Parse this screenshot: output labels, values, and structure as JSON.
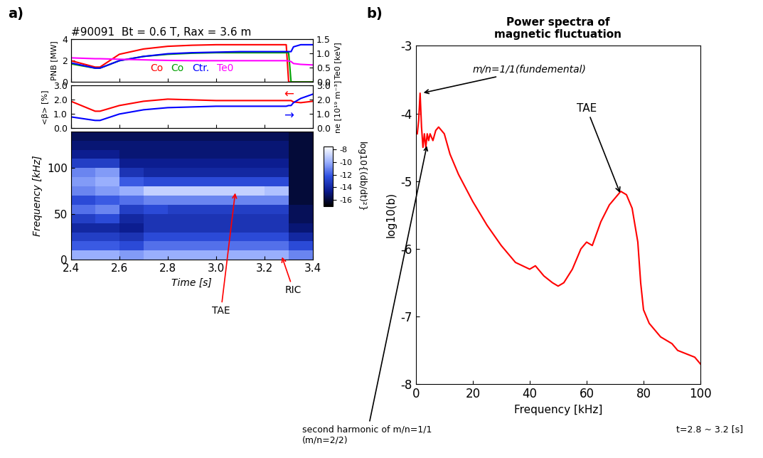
{
  "chart_data": [
    {
      "type": "line",
      "title": "#90091  Bt = 0.6 T, Rax = 3.6 m",
      "x": [
        2.4,
        2.5,
        2.52,
        2.6,
        2.7,
        2.8,
        2.9,
        3.0,
        3.1,
        3.2,
        3.29,
        3.3,
        3.31,
        3.32,
        3.35,
        3.4
      ],
      "series": [
        {
          "name": "Co",
          "color": "#ff0000",
          "values": [
            2.0,
            1.4,
            1.4,
            2.6,
            3.1,
            3.35,
            3.45,
            3.5,
            3.5,
            3.5,
            3.5,
            0,
            0,
            0,
            0,
            0
          ]
        },
        {
          "name": "Co",
          "color": "#00a000",
          "values": [
            1.7,
            1.3,
            1.3,
            2.0,
            2.4,
            2.6,
            2.7,
            2.75,
            2.75,
            2.75,
            2.75,
            2.75,
            0,
            0,
            0,
            0
          ]
        },
        {
          "name": "Ctr.",
          "color": "#0000ff",
          "values": [
            1.8,
            1.3,
            1.3,
            2.0,
            2.4,
            2.65,
            2.75,
            2.8,
            2.85,
            2.85,
            2.85,
            2.85,
            2.85,
            3.3,
            3.5,
            3.5
          ]
        },
        {
          "name": "Te0",
          "color": "#ff00ff",
          "axis": "y2",
          "values": [
            0.85,
            0.82,
            0.82,
            0.8,
            0.78,
            0.76,
            0.75,
            0.75,
            0.75,
            0.75,
            0.75,
            0.74,
            0.72,
            0.65,
            0.62,
            0.6
          ]
        }
      ],
      "ylabel": "PNB [MW]",
      "y2label": "Te0 [keV]",
      "xlim": [
        2.4,
        3.4
      ],
      "xticks": [
        2.4,
        2.6,
        2.8,
        3.0,
        3.2,
        3.4
      ],
      "ylim": [
        0,
        4
      ],
      "yticks": [
        0,
        2,
        4
      ],
      "y2lim": [
        0.0,
        1.5
      ],
      "y2ticks": [
        0.0,
        0.5,
        1.0,
        1.5
      ],
      "legend": "lower center",
      "tick_labels": "y",
      "annotations": [
        {
          "text": "a)"
        }
      ]
    },
    {
      "type": "line",
      "x": [
        2.4,
        2.5,
        2.52,
        2.6,
        2.7,
        2.8,
        2.9,
        3.0,
        3.1,
        3.2,
        3.29,
        3.3,
        3.31,
        3.32,
        3.35,
        3.4
      ],
      "series": [
        {
          "name": "<β>",
          "color": "#ff0000",
          "values": [
            1.9,
            1.2,
            1.2,
            1.6,
            1.9,
            2.05,
            2.0,
            1.95,
            1.95,
            1.95,
            1.95,
            1.95,
            1.95,
            1.85,
            1.8,
            1.9
          ]
        },
        {
          "name": "ne",
          "color": "#0000ff",
          "axis": "y2",
          "values": [
            0.8,
            0.55,
            0.55,
            1.0,
            1.3,
            1.45,
            1.5,
            1.55,
            1.55,
            1.55,
            1.55,
            1.6,
            1.6,
            1.8,
            2.1,
            2.4
          ]
        }
      ],
      "ylabel": "<β> [%]",
      "y2label": "ne [10¹⁹ m⁻³]",
      "xlim": [
        2.4,
        3.4
      ],
      "xticks": [
        2.4,
        2.6,
        2.8,
        3.0,
        3.2,
        3.4
      ],
      "ylim": [
        0.0,
        3.0
      ],
      "yticks": [
        0.0,
        1.0,
        2.0,
        3.0
      ],
      "y2lim": [
        0.0,
        3.0
      ],
      "y2ticks": [
        0.0,
        1.0,
        2.0,
        3.0
      ],
      "tick_labels": "y",
      "annotations": [
        {
          "text": "←",
          "color": "#ff0000"
        },
        {
          "text": "→",
          "color": "#0000ff"
        }
      ]
    },
    {
      "type": "heatmap",
      "xlabel": "Time [s]",
      "ylabel": "Frequency [kHz]",
      "x_edges": [
        2.4,
        2.5,
        2.6,
        2.7,
        2.8,
        2.9,
        3.0,
        3.1,
        3.2,
        3.3,
        3.4
      ],
      "y_edges": [
        0,
        10,
        20,
        30,
        40,
        50,
        60,
        70,
        80,
        90,
        100,
        110,
        120,
        130,
        140
      ],
      "cells": [
        [
          -10,
          -10,
          -10.5,
          -10,
          -10,
          -10,
          -10,
          -10,
          -10,
          -11
        ],
        [
          -12,
          -12,
          -12.5,
          -11.5,
          -11.5,
          -11.5,
          -11.5,
          -11.5,
          -11.5,
          -12.5
        ],
        [
          -13,
          -13,
          -13.5,
          -12.5,
          -12.5,
          -12.5,
          -12.5,
          -12.5,
          -12.5,
          -14
        ],
        [
          -14,
          -14,
          -14.5,
          -13.5,
          -13.5,
          -13.5,
          -13.5,
          -13.5,
          -13.5,
          -15
        ],
        [
          -13,
          -12.5,
          -14,
          -13.5,
          -13.5,
          -13.5,
          -13.5,
          -13.5,
          -13.5,
          -15.5
        ],
        [
          -11.5,
          -11,
          -13,
          -12.5,
          -13,
          -13,
          -13,
          -13,
          -13,
          -15.5
        ],
        [
          -12.5,
          -12,
          -11.5,
          -11,
          -11,
          -11,
          -11,
          -11,
          -11,
          -16
        ],
        [
          -11,
          -10.5,
          -10,
          -9,
          -9,
          -9,
          -9,
          -9,
          -9.5,
          -16
        ],
        [
          -10.5,
          -10,
          -12,
          -12.5,
          -12.5,
          -12.5,
          -12.5,
          -12.5,
          -12.5,
          -16
        ],
        [
          -11,
          -10.5,
          -13.5,
          -14,
          -14,
          -14,
          -14,
          -14,
          -14,
          -16
        ],
        [
          -13,
          -13,
          -14.5,
          -14.5,
          -14.5,
          -14.5,
          -14.5,
          -14.5,
          -14.5,
          -16
        ],
        [
          -14.5,
          -14.5,
          -15,
          -15,
          -15,
          -15,
          -15,
          -15,
          -15,
          -16
        ],
        [
          -15,
          -15,
          -15,
          -15,
          -15,
          -15,
          -15,
          -15,
          -15,
          -16
        ],
        [
          -15.5,
          -15.5,
          -15.5,
          -15.5,
          -15.5,
          -15.5,
          -15.5,
          -15.5,
          -15.5,
          -16
        ]
      ],
      "xlim": [
        2.4,
        3.4
      ],
      "xticks": [
        2.4,
        2.6,
        2.8,
        3.0,
        3.2,
        3.4
      ],
      "ylim": [
        0,
        140
      ],
      "yticks": [
        0,
        50,
        100
      ],
      "colorbar_range": [
        -17,
        -7.5
      ],
      "colorbar_ticks": [
        -8,
        -10,
        -12,
        -14,
        -16
      ],
      "colorbar_label": "log10{(db/dt)²}",
      "annotations": [
        {
          "text": "TAE",
          "x": 3.08,
          "y": 75,
          "color": "#ff0000"
        },
        {
          "text": "RIC",
          "x": 3.27,
          "y": 5,
          "color": "#ff0000"
        }
      ]
    },
    {
      "type": "line",
      "title": "Power spectra of\nmagnetic fluctuation",
      "xlabel": "Frequency [kHz]",
      "ylabel": "log10(b)",
      "x": [
        0.5,
        1,
        1.5,
        2,
        2.5,
        3,
        3.5,
        4,
        4.5,
        5,
        6,
        7,
        8,
        9,
        10,
        12,
        15,
        20,
        25,
        30,
        35,
        40,
        42,
        45,
        48,
        50,
        52,
        55,
        58,
        60,
        62,
        65,
        68,
        70,
        72,
        74,
        76,
        78,
        79,
        80,
        81,
        82,
        84,
        86,
        88,
        90,
        92,
        95,
        98,
        100
      ],
      "series": [
        {
          "color": "#ff0000",
          "values": [
            -4.3,
            -4.1,
            -3.7,
            -4.2,
            -4.5,
            -4.3,
            -4.5,
            -4.3,
            -4.4,
            -4.3,
            -4.4,
            -4.25,
            -4.2,
            -4.25,
            -4.3,
            -4.6,
            -4.9,
            -5.3,
            -5.65,
            -5.95,
            -6.2,
            -6.3,
            -6.25,
            -6.4,
            -6.5,
            -6.55,
            -6.5,
            -6.3,
            -6.0,
            -5.9,
            -5.95,
            -5.6,
            -5.35,
            -5.25,
            -5.15,
            -5.2,
            -5.4,
            -5.9,
            -6.5,
            -6.9,
            -7.0,
            -7.1,
            -7.2,
            -7.3,
            -7.35,
            -7.4,
            -7.5,
            -7.55,
            -7.6,
            -7.7
          ]
        }
      ],
      "xlim": [
        0,
        100
      ],
      "xticks": [
        0,
        20,
        40,
        60,
        80,
        100
      ],
      "ylim": [
        -8,
        -3
      ],
      "yticks": [
        -8,
        -7,
        -6,
        -5,
        -4,
        -3
      ],
      "annotations": [
        {
          "text": "b)"
        },
        {
          "text": "m/n=1/1(fundemental)",
          "x": 2,
          "y": -3.7
        },
        {
          "text": "TAE",
          "x": 72,
          "y": -5.2
        },
        {
          "text": "second harmonic of m/n=1/1\n(m/n=2/2)",
          "x": 4,
          "y": -4.45
        },
        {
          "text": "t=2.8 ~ 3.2 [s]"
        }
      ]
    }
  ]
}
